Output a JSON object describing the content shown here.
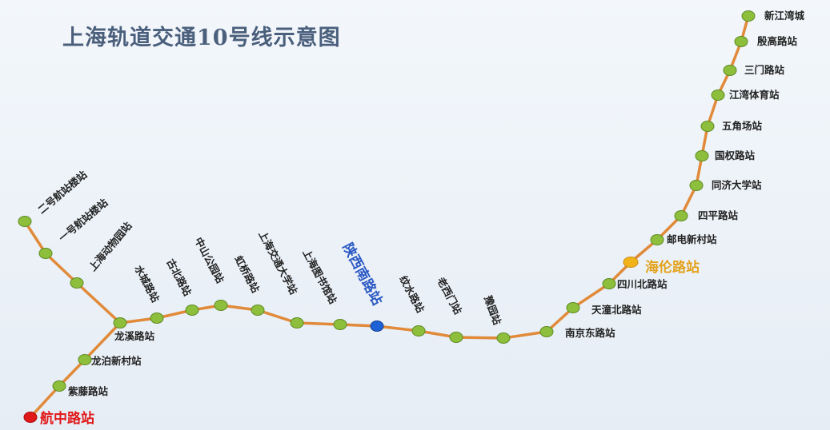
{
  "title": "上海轨道交通10号线示意图",
  "colors": {
    "line": "#e08a3a",
    "station": "#8dbf3c",
    "station_edge": "#5d8a22",
    "highlight_blue": "#1f62d6",
    "highlight_gold": "#f2b31a",
    "highlight_red": "#e11818"
  },
  "stations": {
    "xinjiangwancheng": "新江湾城",
    "yingaolu": "殷高路站",
    "sanmenlu": "三门路站",
    "jiangwantiyuchang": "江湾体育站",
    "wujiaochang": "五角场站",
    "guoquanlu": "国权路站",
    "tongjidaxue": "同济大学站",
    "sipinglu": "四平路站",
    "youdianxincun": "邮电新村站",
    "hailunlu": "海伦路站",
    "sichuanbeilu": "四川北路站",
    "tiantongbeilu": "天潼北路站",
    "nanjingdonglu": "南京东路站",
    "yuyuan": "豫园站",
    "laoximen": "老西门站",
    "xintiandi": "纹水路站",
    "shaanxinanlu": "陕西南路站",
    "shanghaitushuguan": "上海图书馆站",
    "jiaotongdaxue": "上海交通大学站",
    "hongqiaolu": "虹桥路站",
    "zhongshangongyuan": "中山公园站",
    "gubeilu": "古北路站",
    "shuichenglu": "水城路站",
    "longxilu": "龙溪路站",
    "longboxincun": "龙泊新村站",
    "ziteng": "紫藤路站",
    "hangzhonglu": "航中路站",
    "dongwuyuan": "上海动物园站",
    "t1": "一号航站楼站",
    "t2": "二号航站楼站"
  }
}
